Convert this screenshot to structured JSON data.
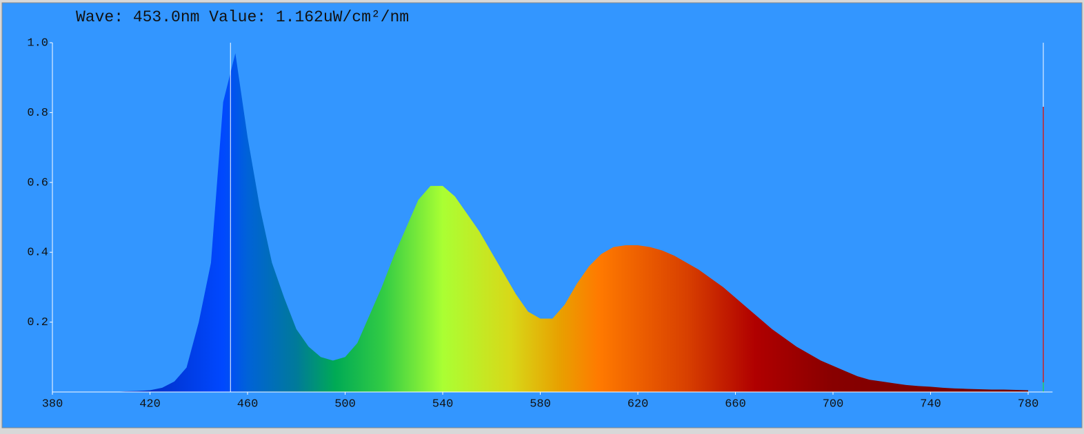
{
  "chart_data": {
    "type": "area",
    "title": "Wave: 453.0nm Value: 1.162uW/cm²/nm",
    "cursor": 453,
    "xlim": [
      380,
      790
    ],
    "ylim": [
      0,
      1
    ],
    "xticks": [
      380,
      420,
      460,
      500,
      540,
      580,
      620,
      660,
      700,
      740,
      780
    ],
    "yticks": [
      0.2,
      0.4,
      0.6,
      0.8,
      {
        "value": 1,
        "label": "1.0"
      }
    ],
    "x": [
      380,
      385,
      390,
      395,
      400,
      405,
      410,
      415,
      420,
      425,
      430,
      435,
      440,
      445,
      450,
      455,
      460,
      465,
      470,
      475,
      480,
      485,
      490,
      495,
      500,
      505,
      510,
      515,
      520,
      525,
      530,
      535,
      540,
      545,
      550,
      555,
      560,
      565,
      570,
      575,
      580,
      585,
      590,
      595,
      600,
      605,
      610,
      615,
      620,
      625,
      630,
      635,
      640,
      645,
      650,
      655,
      660,
      665,
      670,
      675,
      680,
      685,
      690,
      695,
      700,
      705,
      710,
      715,
      720,
      725,
      730,
      735,
      740,
      745,
      750,
      755,
      760,
      765,
      770,
      775,
      780
    ],
    "values": [
      0,
      0,
      0,
      0,
      0,
      0,
      0.002,
      0.003,
      0.005,
      0.012,
      0.03,
      0.07,
      0.2,
      0.37,
      0.83,
      0.97,
      0.73,
      0.53,
      0.37,
      0.27,
      0.18,
      0.13,
      0.1,
      0.09,
      0.1,
      0.14,
      0.22,
      0.3,
      0.39,
      0.47,
      0.55,
      0.59,
      0.59,
      0.56,
      0.51,
      0.46,
      0.4,
      0.34,
      0.28,
      0.23,
      0.21,
      0.21,
      0.25,
      0.31,
      0.36,
      0.395,
      0.415,
      0.42,
      0.42,
      0.415,
      0.405,
      0.39,
      0.37,
      0.35,
      0.325,
      0.3,
      0.27,
      0.24,
      0.21,
      0.18,
      0.155,
      0.13,
      0.11,
      0.09,
      0.075,
      0.06,
      0.045,
      0.035,
      0.03,
      0.025,
      0.02,
      0.017,
      0.015,
      0.012,
      0.01,
      0.009,
      0.008,
      0.007,
      0.007,
      0.006,
      0.005
    ]
  }
}
